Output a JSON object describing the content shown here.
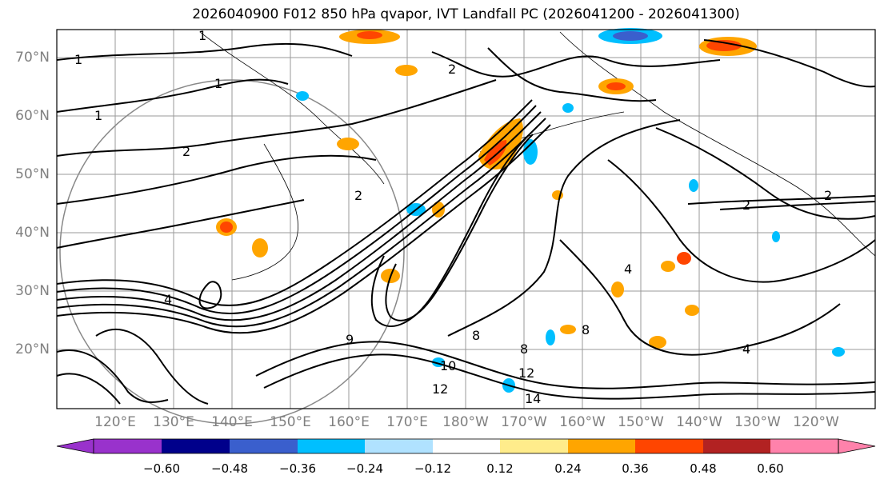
{
  "title": "2026040900 F012 850 hPa qvapor, IVT Landfall PC (2026041200 - 2026041300)",
  "lat_labels": [
    "70°N",
    "60°N",
    "50°N",
    "40°N",
    "30°N",
    "20°N"
  ],
  "lon_labels": [
    "120°E",
    "130°E",
    "140°E",
    "150°E",
    "160°E",
    "170°E",
    "180°W",
    "170°W",
    "160°W",
    "150°W",
    "140°W",
    "130°W",
    "120°W"
  ],
  "colorbar": {
    "ticks": [
      "−0.60",
      "−0.48",
      "−0.36",
      "−0.24",
      "−0.12",
      "0.12",
      "0.24",
      "0.36",
      "0.48",
      "0.60"
    ],
    "colors": [
      "#9932cc",
      "#00008b",
      "#3a5fcd",
      "#00bfff",
      "#b0e2ff",
      "#ffffff",
      "#ffec8b",
      "#ffa500",
      "#ff4500",
      "#b22222",
      "#ff82ab"
    ]
  },
  "contour_labels": [
    "1",
    "1",
    "1",
    "1",
    "2",
    "2",
    "2",
    "2",
    "2",
    "4",
    "4",
    "4",
    "8",
    "8",
    "8",
    "9",
    "10",
    "12",
    "12",
    "14"
  ],
  "colors": {
    "label_gray": "#808080",
    "grid_gray": "#9a9a9a",
    "contour": "#000000"
  }
}
